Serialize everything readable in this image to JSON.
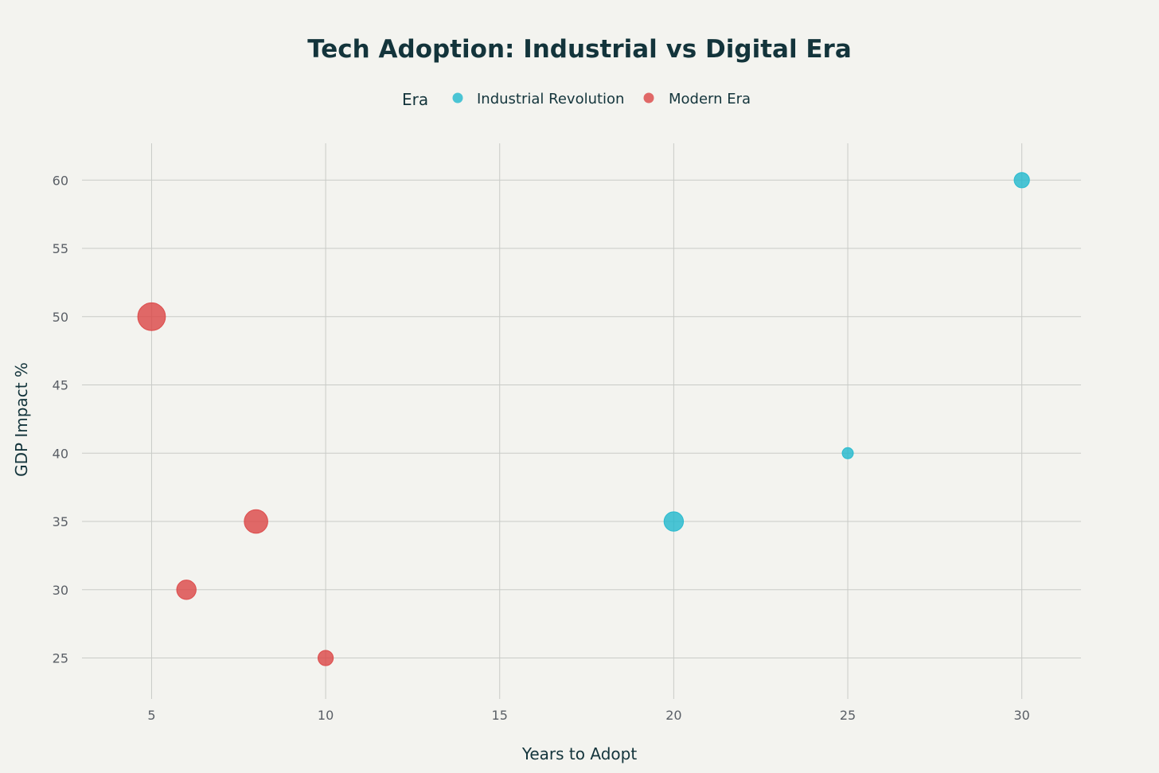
{
  "chart_data": {
    "type": "scatter",
    "title": "Tech Adoption: Industrial vs Digital Era",
    "xlabel": "Years to Adopt",
    "ylabel": "GDP Impact %",
    "xlim": [
      3,
      31.7
    ],
    "ylim": [
      22,
      62.7
    ],
    "x_ticks": [
      5,
      10,
      15,
      20,
      25,
      30
    ],
    "y_ticks": [
      25,
      30,
      35,
      40,
      45,
      50,
      55,
      60
    ],
    "grid": true,
    "legend": {
      "title": "Era",
      "placement": "top-center",
      "orientation": "horizontal"
    },
    "series": [
      {
        "name": "Industrial Revolution",
        "color": "#1fb8cd",
        "points": [
          {
            "x": 30,
            "y": 60,
            "size": 2
          },
          {
            "x": 25,
            "y": 40,
            "size": 1
          },
          {
            "x": 20,
            "y": 35,
            "size": 3
          }
        ]
      },
      {
        "name": "Modern Era",
        "color": "#db4545",
        "points": [
          {
            "x": 5,
            "y": 50,
            "size": 5
          },
          {
            "x": 8,
            "y": 35,
            "size": 4
          },
          {
            "x": 6,
            "y": 30,
            "size": 3
          },
          {
            "x": 10,
            "y": 25,
            "size": 2
          }
        ]
      }
    ]
  }
}
